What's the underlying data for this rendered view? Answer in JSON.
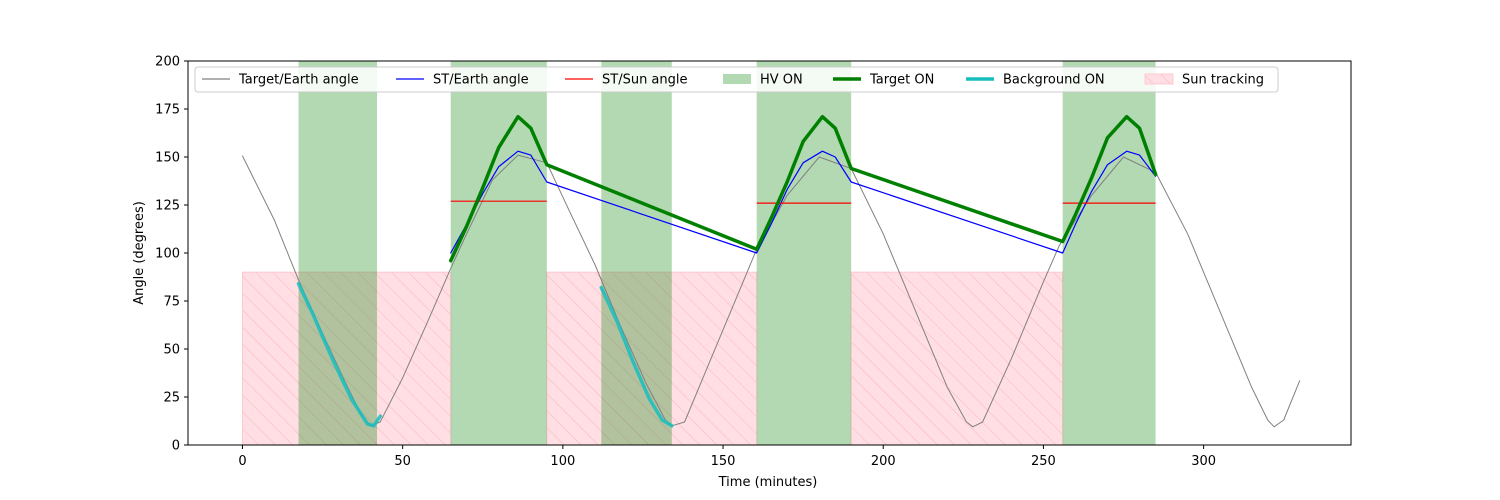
{
  "chart_data": {
    "type": "line",
    "xlabel": "Time (minutes)",
    "ylabel": "Angle (degrees)",
    "xlim": [
      -17,
      346
    ],
    "ylim": [
      0,
      200
    ],
    "xticks": [
      0,
      50,
      100,
      150,
      200,
      250,
      300
    ],
    "yticks": [
      0,
      25,
      50,
      75,
      100,
      125,
      150,
      175,
      200
    ],
    "legend_position": "top",
    "legend": [
      {
        "key": "target_earth",
        "label": "Target/Earth angle",
        "kind": "line",
        "color": "#808080"
      },
      {
        "key": "st_earth",
        "label": "ST/Earth angle",
        "kind": "line",
        "color": "#0000ff"
      },
      {
        "key": "st_sun",
        "label": "ST/Sun angle",
        "kind": "line",
        "color": "#ff0000"
      },
      {
        "key": "hv_on",
        "label": "HV ON",
        "kind": "patch",
        "color": "#b2d8b2"
      },
      {
        "key": "target_on",
        "label": "Target ON",
        "kind": "thick-line",
        "color": "#008000"
      },
      {
        "key": "background_on",
        "label": "Background ON",
        "kind": "thick-line",
        "color": "#17bebe"
      },
      {
        "key": "sun_tracking",
        "label": "Sun tracking",
        "kind": "hatch",
        "color": "#ffdfe3"
      }
    ],
    "series": [
      {
        "name": "Target/Earth angle",
        "color": "#808080",
        "points": [
          [
            0,
            150.5
          ],
          [
            10,
            117
          ],
          [
            17.5,
            86
          ],
          [
            25,
            58
          ],
          [
            32,
            33
          ],
          [
            37,
            16
          ],
          [
            40,
            10
          ],
          [
            43,
            12
          ],
          [
            50,
            35
          ],
          [
            58,
            65
          ],
          [
            65,
            92
          ],
          [
            70,
            110
          ],
          [
            78,
            138
          ],
          [
            86,
            151
          ],
          [
            95,
            147
          ],
          [
            102,
            122
          ],
          [
            110,
            94
          ],
          [
            118,
            62
          ],
          [
            126,
            32
          ],
          [
            132,
            13
          ],
          [
            134,
            10
          ],
          [
            138,
            12
          ],
          [
            145,
            40
          ],
          [
            155,
            80
          ],
          [
            160,
            100
          ],
          [
            170,
            130
          ],
          [
            180,
            150
          ],
          [
            190,
            144
          ],
          [
            200,
            110
          ],
          [
            210,
            70
          ],
          [
            220,
            30
          ],
          [
            226,
            12
          ],
          [
            228,
            9.5
          ],
          [
            231,
            12
          ],
          [
            240,
            45
          ],
          [
            250,
            85
          ],
          [
            255,
            104
          ],
          [
            265,
            130
          ],
          [
            275,
            150
          ],
          [
            285,
            142
          ],
          [
            295,
            110
          ],
          [
            305,
            70
          ],
          [
            315,
            30
          ],
          [
            320,
            13
          ],
          [
            322,
            9.5
          ],
          [
            325,
            13
          ],
          [
            330,
            33.5
          ]
        ]
      },
      {
        "name": "ST/Earth angle",
        "color": "#0000ff",
        "points": [
          [
            65,
            100
          ],
          [
            70,
            115
          ],
          [
            75,
            131
          ],
          [
            80,
            145
          ],
          [
            86,
            153
          ],
          [
            90,
            151
          ],
          [
            95,
            137
          ],
          [
            160.5,
            100
          ],
          [
            165,
            115
          ],
          [
            170,
            133
          ],
          [
            175,
            147
          ],
          [
            181,
            153
          ],
          [
            185,
            150
          ],
          [
            190,
            137
          ],
          [
            256,
            100
          ],
          [
            260,
            115
          ],
          [
            265,
            132
          ],
          [
            270,
            146
          ],
          [
            276,
            153
          ],
          [
            280,
            151
          ],
          [
            285,
            140
          ]
        ]
      },
      {
        "name": "ST/Sun angle",
        "color": "#ff0000",
        "points": [
          [
            65,
            127
          ],
          [
            95,
            127
          ],
          [
            null,
            null
          ],
          [
            160.5,
            126
          ],
          [
            190,
            126
          ],
          [
            null,
            null
          ],
          [
            256,
            126
          ],
          [
            285,
            126
          ]
        ]
      },
      {
        "name": "Target ON",
        "color": "#008000",
        "points": [
          [
            65,
            96
          ],
          [
            70,
            114
          ],
          [
            75,
            134
          ],
          [
            80,
            155
          ],
          [
            86,
            171
          ],
          [
            90,
            165
          ],
          [
            95,
            146
          ],
          [
            160.5,
            102
          ],
          [
            165,
            118
          ],
          [
            170,
            137
          ],
          [
            175,
            158
          ],
          [
            181,
            171
          ],
          [
            185,
            165
          ],
          [
            190,
            144
          ],
          [
            256,
            106
          ],
          [
            260,
            120
          ],
          [
            265,
            139
          ],
          [
            270,
            160
          ],
          [
            276,
            171
          ],
          [
            280,
            165
          ],
          [
            285,
            141
          ]
        ]
      },
      {
        "name": "Background ON",
        "color": "#17bebe",
        "points": [
          [
            17.5,
            84
          ],
          [
            22,
            68
          ],
          [
            28,
            45
          ],
          [
            34,
            24
          ],
          [
            39,
            11
          ],
          [
            41,
            10
          ],
          [
            43,
            15
          ],
          [
            null,
            null
          ],
          [
            112,
            82
          ],
          [
            117,
            64
          ],
          [
            122,
            43
          ],
          [
            127,
            24
          ],
          [
            131,
            13
          ],
          [
            134,
            10
          ]
        ]
      }
    ],
    "hv_on_intervals": [
      [
        17.5,
        42
      ],
      [
        65,
        95
      ],
      [
        112,
        134
      ],
      [
        160.5,
        190
      ],
      [
        256,
        285
      ]
    ],
    "target_on_intervals": [
      [
        65,
        95
      ],
      [
        160.5,
        190
      ],
      [
        256,
        285
      ]
    ],
    "background_on_intervals": [
      [
        17.5,
        43
      ],
      [
        112,
        134
      ]
    ],
    "sun_tracking_intervals": [
      [
        0,
        65
      ],
      [
        95,
        160.5
      ],
      [
        190,
        256
      ]
    ],
    "sun_tracking_height": 90
  }
}
